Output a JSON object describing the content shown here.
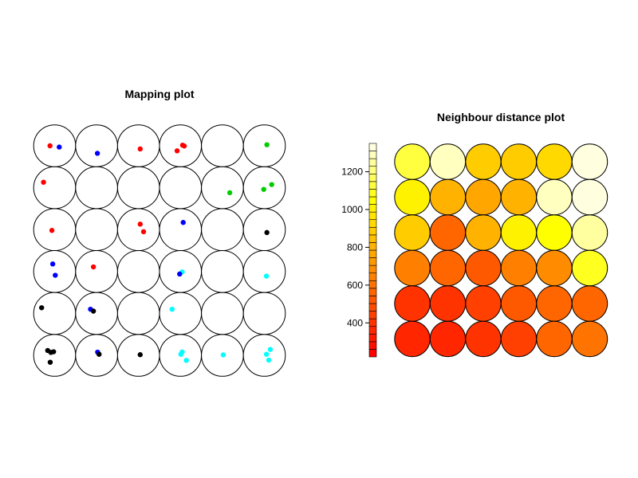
{
  "chart_data": [
    {
      "type": "scatter",
      "title": "Mapping plot",
      "grid": {
        "cols": 6,
        "rows": 6
      },
      "colors": {
        "red": "#ff0000",
        "blue": "#0000ff",
        "green": "#00cd00",
        "black": "#000000",
        "cyan": "#00ffff"
      },
      "points": [
        {
          "col": 0,
          "row": 5,
          "dx": -0.22,
          "dy": 0.0,
          "color": "red"
        },
        {
          "col": 0,
          "row": 5,
          "dx": 0.22,
          "dy": -0.06,
          "color": "blue"
        },
        {
          "col": 1,
          "row": 5,
          "dx": 0.04,
          "dy": -0.36,
          "color": "blue"
        },
        {
          "col": 2,
          "row": 5,
          "dx": 0.08,
          "dy": -0.15,
          "color": "red"
        },
        {
          "col": 3,
          "row": 5,
          "dx": 0.1,
          "dy": 0.03,
          "color": "red"
        },
        {
          "col": 3,
          "row": 5,
          "dx": 0.18,
          "dy": -0.01,
          "color": "red"
        },
        {
          "col": 3,
          "row": 5,
          "dx": -0.16,
          "dy": -0.24,
          "color": "red"
        },
        {
          "col": 5,
          "row": 5,
          "dx": 0.12,
          "dy": 0.05,
          "color": "green"
        },
        {
          "col": 0,
          "row": 4,
          "dx": -0.53,
          "dy": 0.26,
          "color": "red"
        },
        {
          "col": 4,
          "row": 4,
          "dx": 0.35,
          "dy": -0.24,
          "color": "green"
        },
        {
          "col": 5,
          "row": 4,
          "dx": 0.35,
          "dy": 0.15,
          "color": "green"
        },
        {
          "col": 5,
          "row": 4,
          "dx": -0.03,
          "dy": -0.08,
          "color": "green"
        },
        {
          "col": 0,
          "row": 3,
          "dx": -0.13,
          "dy": -0.04,
          "color": "red"
        },
        {
          "col": 2,
          "row": 3,
          "dx": 0.08,
          "dy": 0.26,
          "color": "red"
        },
        {
          "col": 2,
          "row": 3,
          "dx": 0.24,
          "dy": -0.1,
          "color": "red"
        },
        {
          "col": 3,
          "row": 3,
          "dx": 0.13,
          "dy": 0.34,
          "color": "blue"
        },
        {
          "col": 5,
          "row": 3,
          "dx": 0.12,
          "dy": -0.14,
          "color": "black"
        },
        {
          "col": 0,
          "row": 2,
          "dx": -0.09,
          "dy": 0.36,
          "color": "blue"
        },
        {
          "col": 0,
          "row": 2,
          "dx": 0.03,
          "dy": -0.18,
          "color": "blue"
        },
        {
          "col": 1,
          "row": 2,
          "dx": -0.15,
          "dy": 0.22,
          "color": "red"
        },
        {
          "col": 3,
          "row": 2,
          "dx": 0.08,
          "dy": -0.02,
          "color": "cyan"
        },
        {
          "col": 3,
          "row": 2,
          "dx": -0.04,
          "dy": -0.12,
          "color": "blue"
        },
        {
          "col": 5,
          "row": 2,
          "dx": 0.1,
          "dy": -0.22,
          "color": "cyan"
        },
        {
          "col": 0,
          "row": 1,
          "dx": -0.62,
          "dy": 0.27,
          "color": "black"
        },
        {
          "col": 1,
          "row": 1,
          "dx": -0.29,
          "dy": 0.2,
          "color": "blue"
        },
        {
          "col": 1,
          "row": 1,
          "dx": -0.15,
          "dy": 0.11,
          "color": "black"
        },
        {
          "col": 3,
          "row": 1,
          "dx": -0.4,
          "dy": 0.2,
          "color": "cyan"
        },
        {
          "col": 0,
          "row": 0,
          "dx": -0.33,
          "dy": 0.23,
          "color": "black"
        },
        {
          "col": 0,
          "row": 0,
          "dx": -0.18,
          "dy": 0.14,
          "color": "black"
        },
        {
          "col": 0,
          "row": 0,
          "dx": -0.05,
          "dy": 0.17,
          "color": "black"
        },
        {
          "col": 0,
          "row": 0,
          "dx": -0.21,
          "dy": -0.33,
          "color": "black"
        },
        {
          "col": 1,
          "row": 0,
          "dx": 0.05,
          "dy": 0.15,
          "color": "blue"
        },
        {
          "col": 1,
          "row": 0,
          "dx": 0.12,
          "dy": 0.05,
          "color": "black"
        },
        {
          "col": 2,
          "row": 0,
          "dx": 0.08,
          "dy": 0.03,
          "color": "black"
        },
        {
          "col": 3,
          "row": 0,
          "dx": 0.08,
          "dy": 0.16,
          "color": "cyan"
        },
        {
          "col": 3,
          "row": 0,
          "dx": 0.02,
          "dy": 0.05,
          "color": "cyan"
        },
        {
          "col": 3,
          "row": 0,
          "dx": 0.28,
          "dy": -0.24,
          "color": "cyan"
        },
        {
          "col": 4,
          "row": 0,
          "dx": 0.04,
          "dy": 0.02,
          "color": "cyan"
        },
        {
          "col": 5,
          "row": 0,
          "dx": 0.28,
          "dy": 0.28,
          "color": "cyan"
        },
        {
          "col": 5,
          "row": 0,
          "dx": 0.1,
          "dy": 0.05,
          "color": "cyan"
        },
        {
          "col": 5,
          "row": 0,
          "dx": 0.21,
          "dy": -0.23,
          "color": "cyan"
        }
      ]
    },
    {
      "type": "heatmap",
      "title": "Neighbour distance plot",
      "grid": {
        "cols": 6,
        "rows": 6
      },
      "colorbar": {
        "min": 220,
        "max": 1350,
        "ticks": [
          400,
          600,
          800,
          1000,
          1200
        ],
        "bands": [
          "#ff0000",
          "#ff0d00",
          "#ff1a00",
          "#ff2600",
          "#ff3300",
          "#ff4000",
          "#ff4d00",
          "#ff5900",
          "#ff6600",
          "#ff7300",
          "#ff8000",
          "#ff8c00",
          "#ff9900",
          "#ffa600",
          "#ffb300",
          "#ffbf00",
          "#ffcc00",
          "#ffd900",
          "#ffe500",
          "#fff200",
          "#ffff00",
          "#ffff20",
          "#ffff40",
          "#ffff60",
          "#ffff80",
          "#ffff9f",
          "#ffffbf",
          "#ffffdf"
        ]
      },
      "values": [
        [
          1140,
          1280,
          870,
          870,
          940,
          1330
        ],
        [
          990,
          800,
          760,
          790,
          1300,
          1400
        ],
        [
          880,
          580,
          810,
          1000,
          1050,
          1260
        ],
        [
          660,
          550,
          540,
          660,
          690,
          1080
        ],
        [
          400,
          410,
          450,
          520,
          560,
          580
        ],
        [
          360,
          380,
          400,
          430,
          560,
          610
        ]
      ]
    }
  ]
}
